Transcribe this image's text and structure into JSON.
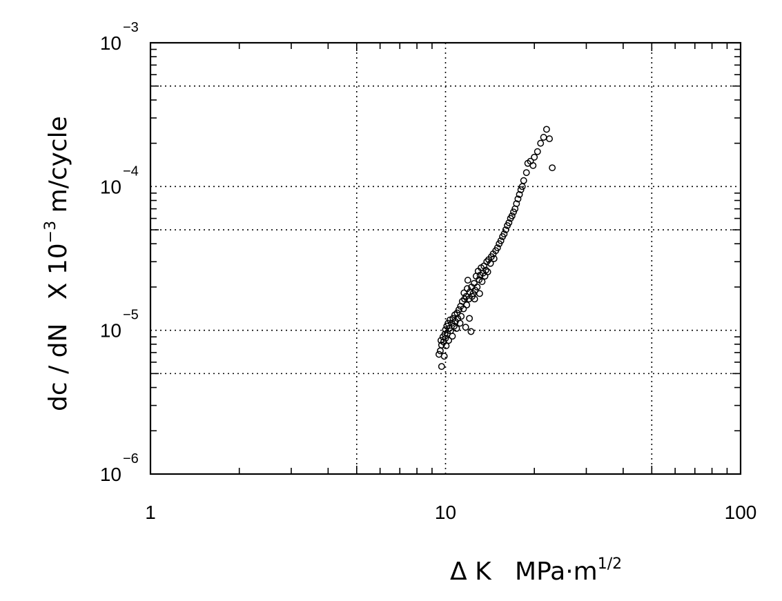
{
  "chart_data": {
    "type": "scatter",
    "x_scale": "log",
    "y_scale": "log",
    "xlim": [
      1,
      100
    ],
    "ylim": [
      1e-06,
      0.001
    ],
    "grid": true,
    "marker": "open-circle",
    "x_ticks": [
      {
        "value": 1,
        "label": "1"
      },
      {
        "value": 10,
        "label": "10"
      },
      {
        "value": 100,
        "label": "100"
      }
    ],
    "y_ticks": [
      {
        "value": 0.001,
        "base": "10",
        "exp": "−3"
      },
      {
        "value": 0.0001,
        "base": "10",
        "exp": "−4"
      },
      {
        "value": 1e-05,
        "base": "10",
        "exp": "−5"
      },
      {
        "value": 1e-06,
        "base": "10",
        "exp": "−6"
      }
    ],
    "xlabel": {
      "main": "Δ K   MPa·m",
      "sup": "1/2"
    },
    "ylabel": {
      "main": "dc / dN   X 10",
      "sup": "−3",
      "tail": " m/cycle"
    },
    "points": [
      [
        9.5,
        6.8e-06
      ],
      [
        9.6,
        7.2e-06
      ],
      [
        9.65,
        8.5e-06
      ],
      [
        9.7,
        7.9e-06
      ],
      [
        9.7,
        5.6e-06
      ],
      [
        9.8,
        9e-06
      ],
      [
        9.85,
        8.3e-06
      ],
      [
        9.9,
        6.6e-06
      ],
      [
        9.95,
        9.4e-06
      ],
      [
        10.0,
        8.8e-06
      ],
      [
        10.0,
        1.01e-05
      ],
      [
        10.05,
        7.8e-06
      ],
      [
        10.1,
        1.07e-05
      ],
      [
        10.15,
        9.5e-06
      ],
      [
        10.2,
        1.12e-05
      ],
      [
        10.25,
        8.5e-06
      ],
      [
        10.3,
        1.03e-05
      ],
      [
        10.35,
        1.18e-05
      ],
      [
        10.4,
        9.9e-06
      ],
      [
        10.5,
        1.12e-05
      ],
      [
        10.55,
        9.1e-06
      ],
      [
        10.6,
        1.21e-05
      ],
      [
        10.7,
        1.07e-05
      ],
      [
        10.75,
        1.28e-05
      ],
      [
        10.8,
        1.15e-05
      ],
      [
        10.9,
        1.03e-05
      ],
      [
        10.95,
        1.32e-05
      ],
      [
        11.0,
        1.21e-05
      ],
      [
        11.1,
        1.39e-05
      ],
      [
        11.2,
        1.12e-05
      ],
      [
        11.25,
        1.47e-05
      ],
      [
        11.3,
        1.25e-05
      ],
      [
        11.4,
        1.59e-05
      ],
      [
        11.5,
        1.41e-05
      ],
      [
        11.55,
        1.82e-05
      ],
      [
        11.6,
        1.65e-05
      ],
      [
        11.7,
        1.05e-05
      ],
      [
        11.75,
        1.72e-05
      ],
      [
        11.8,
        1.5e-05
      ],
      [
        11.85,
        1.95e-05
      ],
      [
        11.9,
        2.23e-05
      ],
      [
        12.0,
        1.65e-05
      ],
      [
        12.05,
        1.21e-05
      ],
      [
        12.1,
        1.85e-05
      ],
      [
        12.2,
        9.8e-06
      ],
      [
        12.25,
        2e-05
      ],
      [
        12.3,
        1.72e-05
      ],
      [
        12.4,
        1.8e-05
      ],
      [
        12.5,
        2.12e-05
      ],
      [
        12.55,
        1.65e-05
      ],
      [
        12.6,
        1.9e-05
      ],
      [
        12.7,
        2.38e-05
      ],
      [
        12.8,
        2e-05
      ],
      [
        12.9,
        2.58e-05
      ],
      [
        13.0,
        2.25e-05
      ],
      [
        13.05,
        1.8e-05
      ],
      [
        13.1,
        2.42e-05
      ],
      [
        13.2,
        2.72e-05
      ],
      [
        13.3,
        2.18e-05
      ],
      [
        13.4,
        2.5e-05
      ],
      [
        13.5,
        2.8e-05
      ],
      [
        13.6,
        2.38e-05
      ],
      [
        13.7,
        2.62e-05
      ],
      [
        13.8,
        3e-05
      ],
      [
        13.9,
        2.55e-05
      ],
      [
        14.0,
        3.1e-05
      ],
      [
        14.2,
        2.92e-05
      ],
      [
        14.3,
        3.25e-05
      ],
      [
        14.5,
        3.4e-05
      ],
      [
        14.6,
        3.15e-05
      ],
      [
        14.8,
        3.58e-05
      ],
      [
        15.0,
        3.75e-05
      ],
      [
        15.2,
        4e-05
      ],
      [
        15.4,
        4.2e-05
      ],
      [
        15.6,
        4.48e-05
      ],
      [
        15.8,
        4.68e-05
      ],
      [
        16.0,
        5e-05
      ],
      [
        16.2,
        5.35e-05
      ],
      [
        16.4,
        5.6e-05
      ],
      [
        16.6,
        6e-05
      ],
      [
        16.8,
        6.25e-05
      ],
      [
        17.0,
        6.65e-05
      ],
      [
        17.2,
        7e-05
      ],
      [
        17.4,
        7.6e-05
      ],
      [
        17.6,
        8.2e-05
      ],
      [
        17.8,
        8.8e-05
      ],
      [
        18.0,
        9.5e-05
      ],
      [
        18.2,
        0.0001
      ],
      [
        18.4,
        0.00011
      ],
      [
        18.8,
        0.000125
      ],
      [
        19.0,
        0.000145
      ],
      [
        19.4,
        0.00015
      ],
      [
        19.8,
        0.00014
      ],
      [
        20.0,
        0.00016
      ],
      [
        20.5,
        0.000175
      ],
      [
        21.0,
        0.0002
      ],
      [
        21.5,
        0.00022
      ],
      [
        22.0,
        0.00025
      ],
      [
        22.5,
        0.000215
      ],
      [
        23.0,
        0.000135
      ]
    ]
  }
}
